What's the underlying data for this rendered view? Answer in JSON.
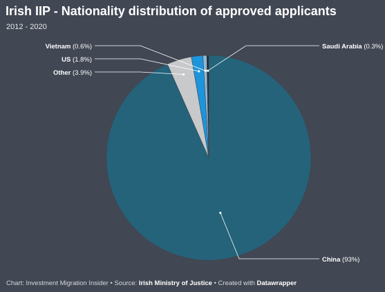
{
  "chart_data": {
    "type": "pie",
    "title": "Irish IIP - Nationality distribution of approved applicants",
    "subtitle": "2012 - 2020",
    "slices": [
      {
        "label": "China",
        "value": 93,
        "display": "China (93%)",
        "color": "#24637a"
      },
      {
        "label": "Other",
        "value": 3.9,
        "display": "Other (3.9%)",
        "color": "#c8c9cb"
      },
      {
        "label": "US",
        "value": 1.8,
        "display": "US (1.8%)",
        "color": "#1c95dd"
      },
      {
        "label": "Vietnam",
        "value": 0.6,
        "display": "Vietnam (0.6%)",
        "color": "#8fb8cf"
      },
      {
        "label": "Saudi Arabia",
        "value": 0.3,
        "display": "Saudi Arabia (0.3%)",
        "color": "#1d2b3a"
      }
    ],
    "legend": "none"
  },
  "footer": {
    "prefix": "Chart: Investment Migration Insider • Source: ",
    "source": "Irish Ministry of Justice",
    "middle": " • Created with ",
    "tool": "Datawrapper"
  }
}
